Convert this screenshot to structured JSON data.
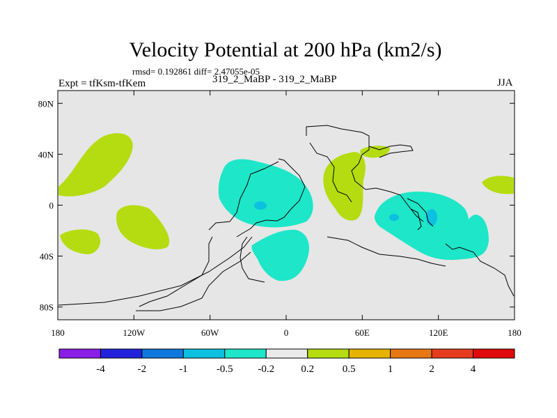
{
  "title": "Velocity Potential at 200 hPa (km2/s)",
  "stats": "rmsd= 0.192861 diff= 2.47055e-05",
  "expt": "Expt = tfKsm-tfKem",
  "runs": "319_2_MaBP - 319_2_MaBP",
  "season": "JJA",
  "lat_labels": [
    "80N",
    "40N",
    "0",
    "40S",
    "80S"
  ],
  "lat_values": [
    80,
    40,
    0,
    -40,
    -80
  ],
  "lon_labels": [
    "180",
    "120W",
    "60W",
    "0",
    "60E",
    "120E",
    "180"
  ],
  "lon_values": [
    -180,
    -120,
    -60,
    0,
    60,
    120,
    180
  ],
  "lat_range": [
    -90,
    90
  ],
  "lon_range": [
    -180,
    180
  ],
  "colorbar": {
    "labels": [
      "-4",
      "-2",
      "-1",
      "-0.5",
      "-0.2",
      "0.2",
      "0.5",
      "1",
      "2",
      "4"
    ],
    "colors": [
      "#8a1ee6",
      "#2222dd",
      "#0e78dc",
      "#0cc0e0",
      "#1ee6c8",
      "#eaeaea",
      "#b4dc10",
      "#e6b400",
      "#e67814",
      "#e63c1e",
      "#e00a0a"
    ]
  },
  "fields": {
    "negative_color": "#1ee6c8",
    "negative_strong_color": "#0cc0e0",
    "positive_color": "#b4dc10",
    "background_color": "#e6e6e6"
  }
}
